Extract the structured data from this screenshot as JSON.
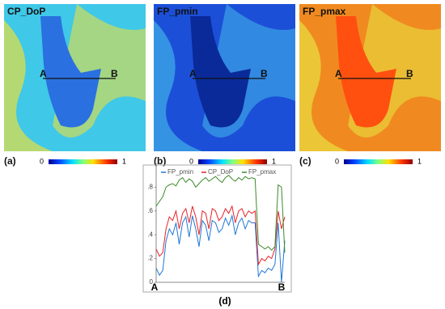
{
  "panels": [
    {
      "title": "CP_DoP",
      "tag": "(a)",
      "point_a": "A",
      "point_b": "B",
      "colorbar_ticks": [
        0,
        1
      ]
    },
    {
      "title": "FP_pmin",
      "tag": "(b)",
      "point_a": "A",
      "point_b": "B",
      "colorbar_ticks": [
        0,
        1
      ]
    },
    {
      "title": "FP_pmax",
      "tag": "(c)",
      "point_a": "A",
      "point_b": "B",
      "colorbar_ticks": [
        0,
        1
      ]
    }
  ],
  "chart_data": {
    "type": "line",
    "tag": "(d)",
    "xlabels": [
      "A",
      "B"
    ],
    "ylim": [
      0,
      1
    ],
    "yticks": [
      0,
      {
        "value": 0.2,
        "label": ".2"
      },
      {
        "value": 0.4,
        "label": ".4"
      },
      {
        "value": 0.6,
        "label": ".6"
      },
      {
        "value": 0.8,
        "label": ".8"
      }
    ],
    "series": [
      {
        "name": "FP_pmin",
        "color": "#1f77d4",
        "values": [
          0.12,
          0.06,
          0.1,
          0.35,
          0.45,
          0.4,
          0.5,
          0.32,
          0.5,
          0.55,
          0.38,
          0.56,
          0.45,
          0.3,
          0.52,
          0.48,
          0.35,
          0.52,
          0.5,
          0.42,
          0.45,
          0.54,
          0.48,
          0.56,
          0.4,
          0.5,
          0.54,
          0.45,
          0.52,
          0.5,
          0.5,
          0.05,
          0.1,
          0.08,
          0.12,
          0.1,
          0.15,
          0.5,
          0.0,
          0.35
        ]
      },
      {
        "name": "CP_DoP",
        "color": "#e8232a",
        "values": [
          0.28,
          0.22,
          0.25,
          0.45,
          0.55,
          0.52,
          0.6,
          0.45,
          0.58,
          0.62,
          0.5,
          0.64,
          0.55,
          0.4,
          0.6,
          0.58,
          0.45,
          0.62,
          0.6,
          0.52,
          0.55,
          0.62,
          0.58,
          0.64,
          0.5,
          0.6,
          0.62,
          0.55,
          0.6,
          0.58,
          0.6,
          0.15,
          0.2,
          0.18,
          0.22,
          0.2,
          0.28,
          0.6,
          0.45,
          0.55
        ]
      },
      {
        "name": "FP_pmax",
        "color": "#3b8a2a",
        "values": [
          0.64,
          0.68,
          0.72,
          0.8,
          0.82,
          0.83,
          0.81,
          0.86,
          0.88,
          0.84,
          0.87,
          0.85,
          0.8,
          0.83,
          0.86,
          0.88,
          0.85,
          0.87,
          0.89,
          0.86,
          0.84,
          0.88,
          0.9,
          0.87,
          0.85,
          0.88,
          0.86,
          0.89,
          0.87,
          0.88,
          0.87,
          0.32,
          0.3,
          0.28,
          0.3,
          0.27,
          0.3,
          0.82,
          0.8,
          0.25
        ]
      }
    ]
  }
}
